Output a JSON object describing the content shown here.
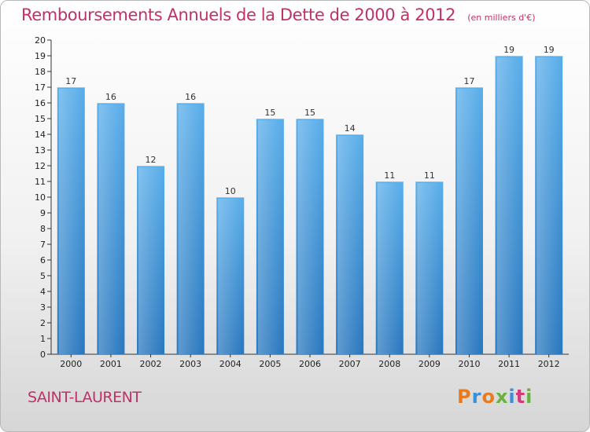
{
  "header": {
    "title": "Remboursements Annuels de la Dette de 2000 à 2012",
    "unit": "(en milliers d'€)"
  },
  "footer": {
    "commune": "SAINT-LAURENT",
    "logo": "Proxiti",
    "logo_colors": [
      "#e87b1e",
      "#3a8fd6",
      "#e87b1e",
      "#6ab23e",
      "#3a8fd6",
      "#d23a7a",
      "#6ab23e"
    ]
  },
  "chart_data": {
    "type": "bar",
    "categories": [
      "2000",
      "2001",
      "2002",
      "2003",
      "2004",
      "2005",
      "2006",
      "2007",
      "2008",
      "2009",
      "2010",
      "2011",
      "2012"
    ],
    "values": [
      17,
      16,
      12,
      16,
      10,
      15,
      15,
      14,
      11,
      11,
      17,
      19,
      19
    ],
    "title": "Remboursements Annuels de la Dette de 2000 à 2012",
    "xlabel": "",
    "ylabel": "",
    "ylim": [
      0,
      20
    ],
    "yticks": [
      0,
      1,
      2,
      3,
      4,
      5,
      6,
      7,
      8,
      9,
      10,
      11,
      12,
      13,
      14,
      15,
      16,
      17,
      18,
      19,
      20
    ],
    "grid": false,
    "bar_color": "#4a9ee0"
  }
}
